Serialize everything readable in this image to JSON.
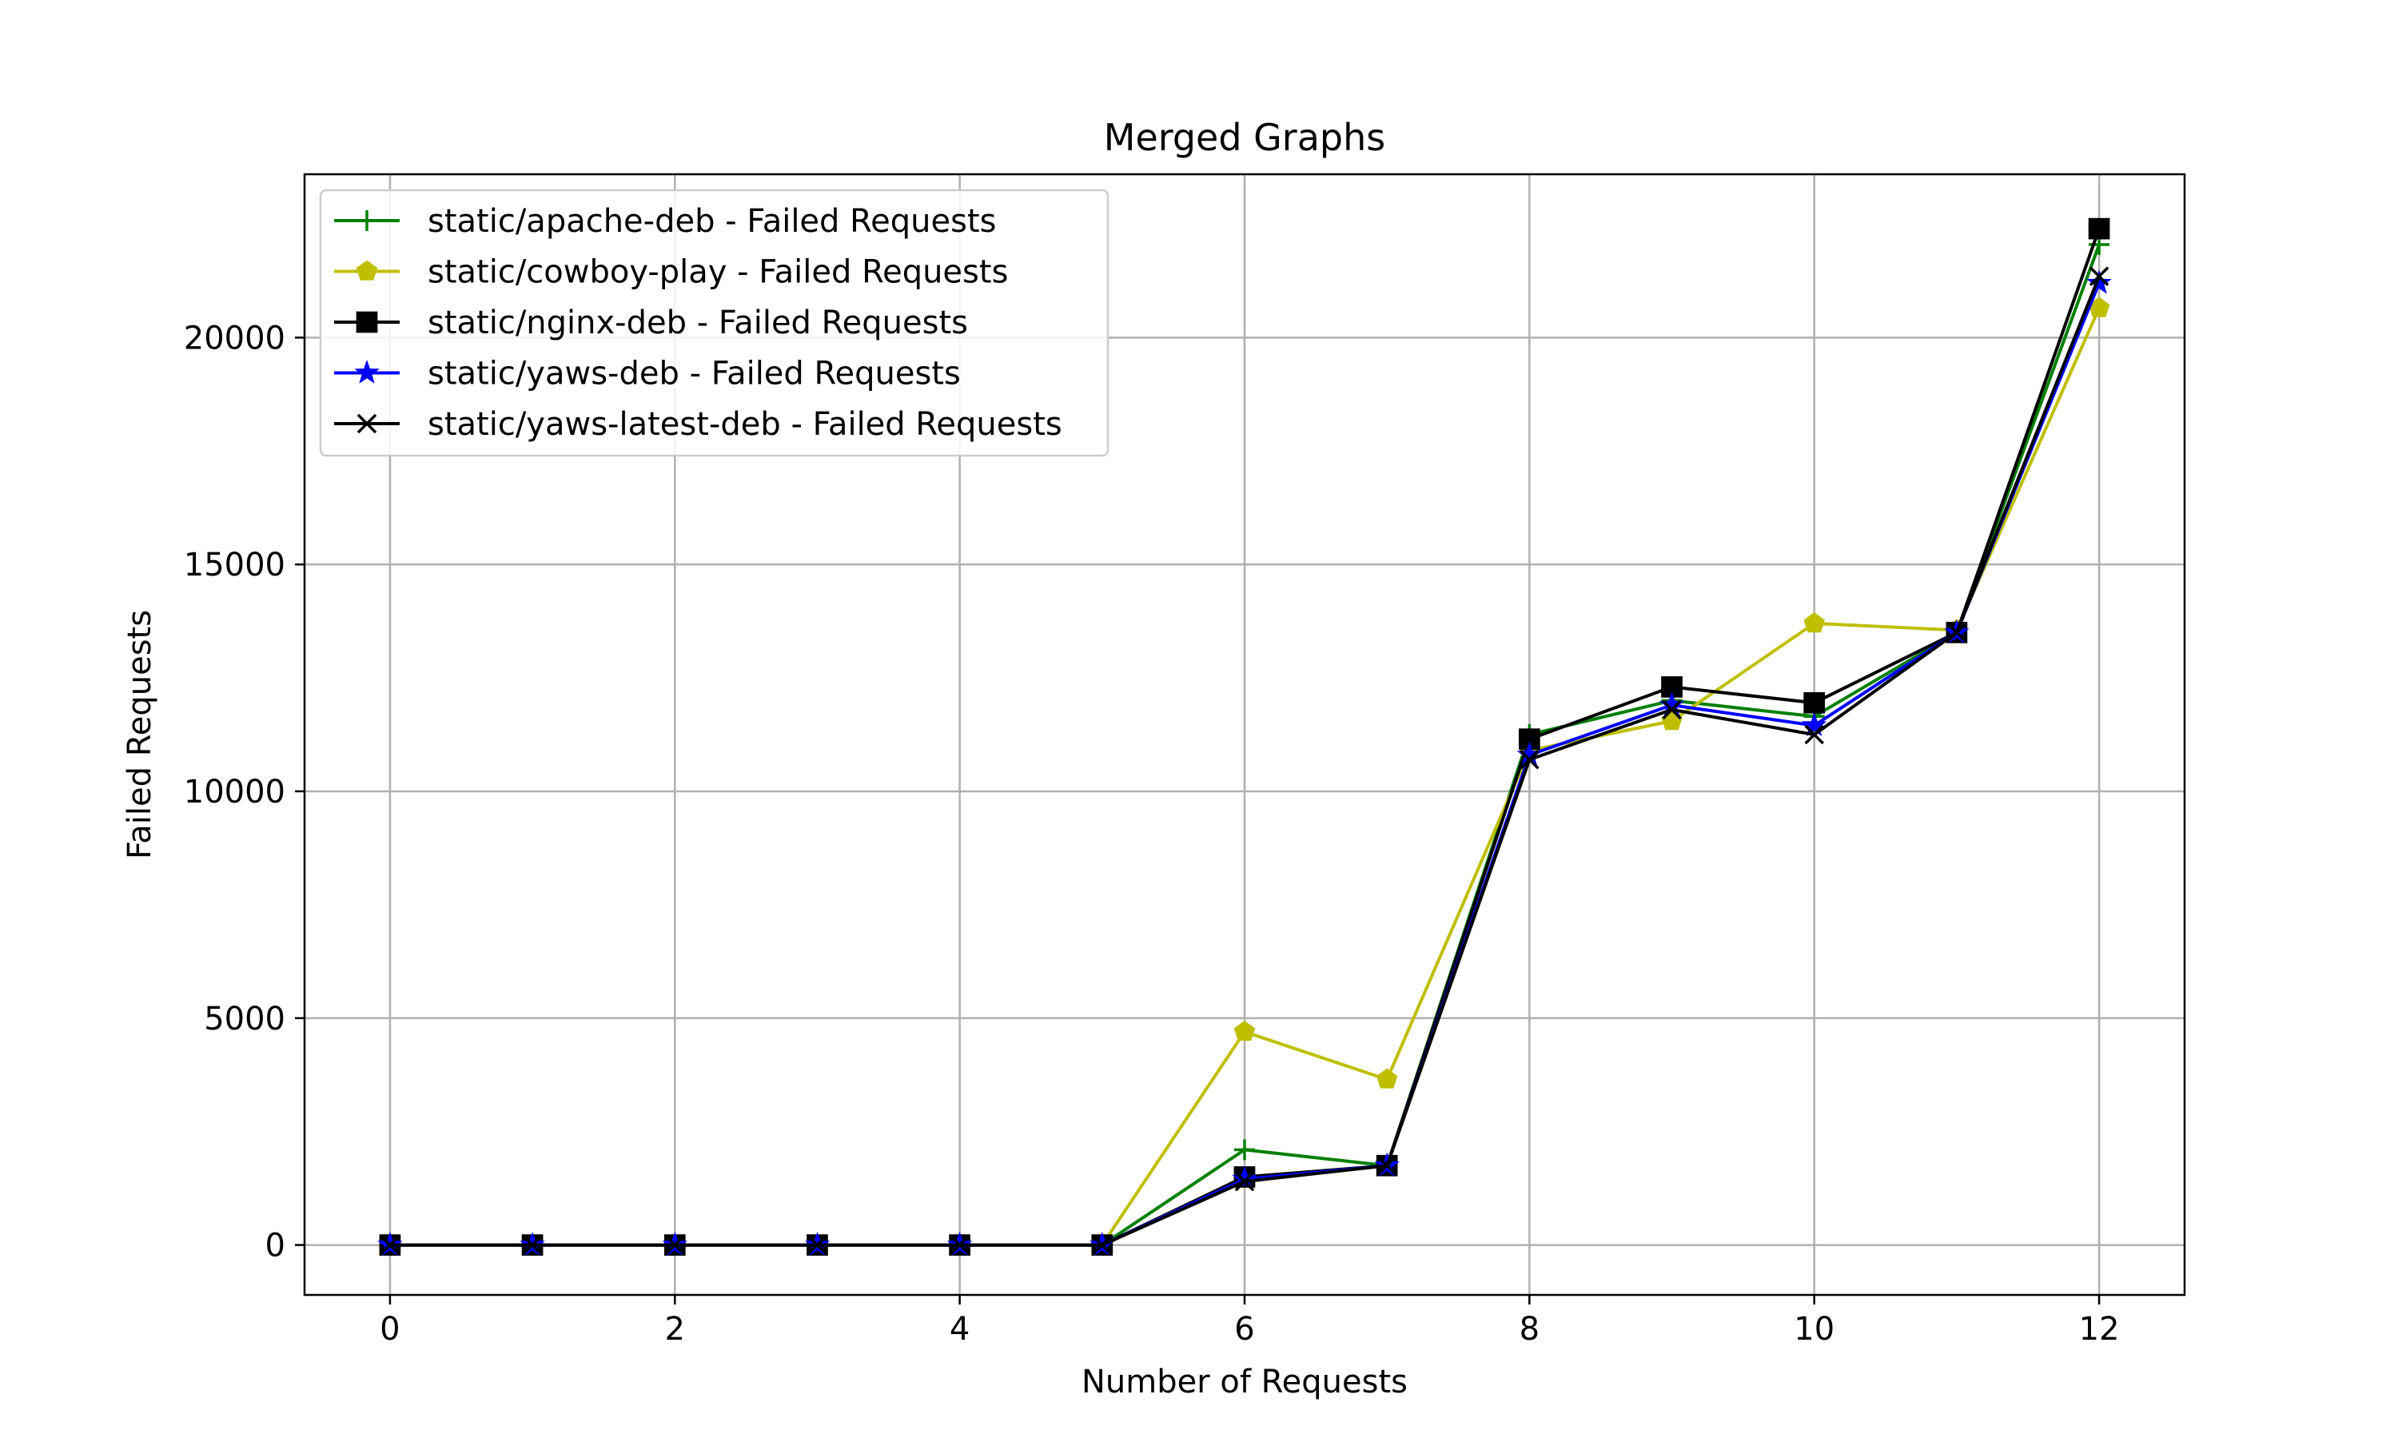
{
  "chart_data": {
    "type": "line",
    "title": "Merged Graphs",
    "xlabel": "Number of Requests",
    "ylabel": "Failed Requests",
    "xlim": [
      -0.6,
      12.6
    ],
    "ylim": [
      -1100,
      23600
    ],
    "xticks": [
      0,
      2,
      4,
      6,
      8,
      10,
      12
    ],
    "yticks": [
      0,
      5000,
      10000,
      15000,
      20000
    ],
    "grid": true,
    "legend_position": "top-left",
    "x": [
      0,
      1,
      2,
      3,
      4,
      5,
      6,
      7,
      8,
      9,
      10,
      11,
      12
    ],
    "series": [
      {
        "name": "static/apache-deb - Failed Requests",
        "color": "#008000",
        "marker": "plus",
        "values": [
          0,
          0,
          0,
          0,
          0,
          0,
          2100,
          1750,
          11250,
          12000,
          11650,
          13500,
          22050
        ]
      },
      {
        "name": "static/cowboy-play - Failed Requests",
        "color": "#bfbf00",
        "marker": "pentagon",
        "values": [
          0,
          0,
          0,
          0,
          0,
          0,
          4700,
          3650,
          10900,
          11550,
          13700,
          13550,
          20650
        ]
      },
      {
        "name": "static/nginx-deb - Failed Requests",
        "color": "#000000",
        "marker": "square",
        "values": [
          0,
          0,
          0,
          0,
          0,
          0,
          1500,
          1750,
          11150,
          12300,
          11950,
          13500,
          22400
        ]
      },
      {
        "name": "static/yaws-deb - Failed Requests",
        "color": "#0000ff",
        "marker": "star",
        "values": [
          0,
          0,
          0,
          0,
          0,
          0,
          1450,
          1750,
          10800,
          11900,
          11450,
          13500,
          21200
        ]
      },
      {
        "name": "static/yaws-latest-deb - Failed Requests",
        "color": "#000000",
        "marker": "x",
        "values": [
          0,
          0,
          0,
          0,
          0,
          0,
          1400,
          1750,
          10700,
          11800,
          11250,
          13500,
          21350
        ]
      }
    ]
  }
}
